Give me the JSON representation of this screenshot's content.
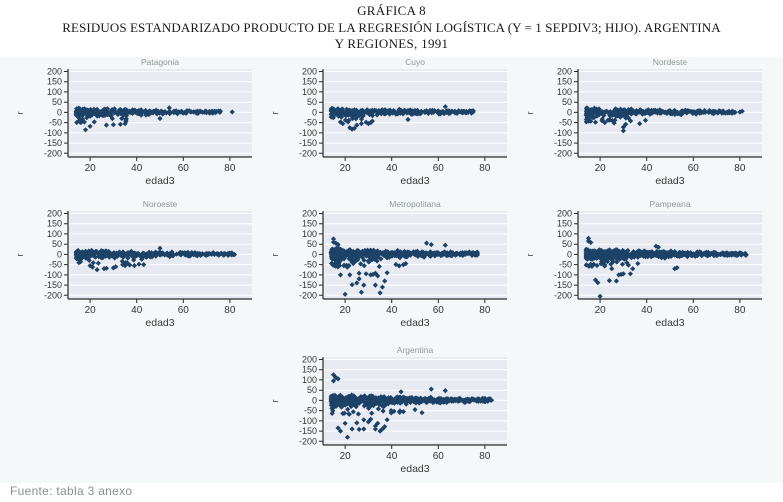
{
  "title": {
    "line1": "GRÁFICA 8",
    "line2": "RESIDUOS ESTANDARIZADO PRODUCTO DE LA REGRESIÓN LOGÍSTICA (Y = 1 SEPDIV3; HIJO). ARGENTINA",
    "line3": "Y REGIONES, 1991"
  },
  "footer": {
    "source": "Fuente: tabla 3 anexo"
  },
  "colors": {
    "marker": "#1c4268",
    "plot_bg": "#e8eaf2",
    "grid": "#ffffff",
    "axis": "#2a2a2a",
    "tick_label": "#333333",
    "subplot_title": "#8f9798",
    "figure_bg": "#f5f8f9"
  },
  "chart_data": {
    "type": "scatter",
    "title": "Residuos estandarizados vs edad, por región",
    "xlabel": "edad3",
    "ylabel": "r",
    "x_ticks": [
      20,
      40,
      60,
      80
    ],
    "y_ticks": [
      200,
      150,
      100,
      50,
      0,
      -50,
      -100,
      -150,
      -200
    ],
    "x_range": [
      10.5,
      89.5
    ],
    "y_range": [
      -218,
      212
    ],
    "grid": true,
    "legend": "none",
    "marker": "diamond",
    "subplots": [
      {
        "title": "Patagonia",
        "band": {
          "x_min": 14,
          "x_max": 76,
          "n": 320,
          "center": 2,
          "spread_young": 22,
          "spread_old": 6,
          "neg_prob": 0.1,
          "neg_x_max": 36,
          "neg_depth": 40,
          "seed": 11
        },
        "outliers": [
          [
            18,
            -85
          ],
          [
            20,
            -68
          ],
          [
            27,
            -62
          ],
          [
            30,
            -60
          ],
          [
            33,
            -58
          ],
          [
            35,
            -55
          ],
          [
            50,
            -30
          ],
          [
            54,
            22
          ],
          [
            81,
            2
          ]
        ]
      },
      {
        "title": "Cuyo",
        "band": {
          "x_min": 14,
          "x_max": 75,
          "n": 340,
          "center": 2,
          "spread_young": 22,
          "spread_old": 7,
          "neg_prob": 0.08,
          "neg_x_max": 32,
          "neg_depth": 35,
          "seed": 22
        },
        "outliers": [
          [
            19,
            -55
          ],
          [
            22,
            -75
          ],
          [
            23,
            -82
          ],
          [
            24,
            -78
          ],
          [
            25,
            -62
          ],
          [
            27,
            -55
          ],
          [
            29,
            -48
          ],
          [
            30,
            -55
          ],
          [
            31,
            -50
          ],
          [
            47,
            -35
          ],
          [
            63,
            28
          ]
        ]
      },
      {
        "title": "Nordeste",
        "band": {
          "x_min": 14,
          "x_max": 78,
          "n": 340,
          "center": 2,
          "spread_young": 24,
          "spread_old": 6,
          "neg_prob": 0.1,
          "neg_x_max": 40,
          "neg_depth": 30,
          "seed": 33
        },
        "outliers": [
          [
            15,
            -42
          ],
          [
            18,
            -48
          ],
          [
            22,
            -50
          ],
          [
            26,
            -52
          ],
          [
            30,
            -90
          ],
          [
            30,
            -72
          ],
          [
            31,
            -58
          ],
          [
            37,
            -55
          ],
          [
            80,
            2
          ],
          [
            81,
            6
          ]
        ]
      },
      {
        "title": "Noroeste",
        "band": {
          "x_min": 14,
          "x_max": 82,
          "n": 360,
          "center": 2,
          "spread_young": 22,
          "spread_old": 6,
          "neg_prob": 0.07,
          "neg_x_max": 44,
          "neg_depth": 30,
          "seed": 44
        },
        "outliers": [
          [
            20,
            -55
          ],
          [
            21,
            -62
          ],
          [
            23,
            -75
          ],
          [
            26,
            -70
          ],
          [
            27,
            -68
          ],
          [
            30,
            -66
          ],
          [
            31,
            -60
          ],
          [
            34,
            -50
          ],
          [
            35,
            -55
          ],
          [
            37,
            -52
          ],
          [
            39,
            -55
          ],
          [
            41,
            -48
          ],
          [
            43,
            -50
          ],
          [
            50,
            30
          ]
        ]
      },
      {
        "title": "Metropolitana",
        "band": {
          "x_min": 14,
          "x_max": 77,
          "n": 550,
          "center": 3,
          "spread_young": 28,
          "spread_old": 9,
          "neg_prob": 0.1,
          "neg_x_max": 45,
          "neg_depth": 45,
          "seed": 55
        },
        "outliers": [
          [
            15,
            75
          ],
          [
            15,
            60
          ],
          [
            16,
            55
          ],
          [
            17,
            48
          ],
          [
            18,
            -100
          ],
          [
            20,
            -195
          ],
          [
            22,
            -100
          ],
          [
            23,
            -148
          ],
          [
            25,
            -140
          ],
          [
            26,
            -92
          ],
          [
            26,
            -120
          ],
          [
            27,
            -185
          ],
          [
            28,
            -150
          ],
          [
            29,
            -95
          ],
          [
            31,
            -100
          ],
          [
            32,
            -98
          ],
          [
            33,
            -150
          ],
          [
            33,
            -92
          ],
          [
            34,
            -105
          ],
          [
            35,
            -188
          ],
          [
            36,
            -160
          ],
          [
            37,
            -130
          ],
          [
            38,
            -90
          ],
          [
            45,
            -50
          ],
          [
            46,
            -45
          ],
          [
            55,
            55
          ],
          [
            57,
            48
          ],
          [
            63,
            45
          ]
        ]
      },
      {
        "title": "Pampeana",
        "band": {
          "x_min": 14,
          "x_max": 83,
          "n": 560,
          "center": 2,
          "spread_young": 28,
          "spread_old": 7,
          "neg_prob": 0.1,
          "neg_x_max": 40,
          "neg_depth": 40,
          "seed": 66
        },
        "outliers": [
          [
            15,
            78
          ],
          [
            15,
            65
          ],
          [
            16,
            58
          ],
          [
            18,
            -125
          ],
          [
            19,
            -138
          ],
          [
            20,
            -205
          ],
          [
            24,
            -128
          ],
          [
            25,
            -70
          ],
          [
            27,
            -130
          ],
          [
            28,
            -100
          ],
          [
            29,
            -98
          ],
          [
            30,
            -95
          ],
          [
            33,
            -95
          ],
          [
            34,
            -70
          ],
          [
            44,
            40
          ],
          [
            45,
            35
          ],
          [
            52,
            -70
          ],
          [
            53,
            -65
          ]
        ]
      },
      {
        "title": "Argentina",
        "band": {
          "x_min": 14,
          "x_max": 83,
          "n": 650,
          "center": 2,
          "spread_young": 30,
          "spread_old": 8,
          "neg_prob": 0.12,
          "neg_x_max": 45,
          "neg_depth": 50,
          "seed": 77
        },
        "outliers": [
          [
            15,
            125
          ],
          [
            15,
            95
          ],
          [
            16,
            112
          ],
          [
            17,
            105
          ],
          [
            17,
            -135
          ],
          [
            18,
            -150
          ],
          [
            20,
            -112
          ],
          [
            21,
            -180
          ],
          [
            23,
            -140
          ],
          [
            25,
            -110
          ],
          [
            26,
            -142
          ],
          [
            28,
            -95
          ],
          [
            28,
            -140
          ],
          [
            30,
            -105
          ],
          [
            31,
            -92
          ],
          [
            33,
            -140
          ],
          [
            33,
            -125
          ],
          [
            34,
            -112
          ],
          [
            35,
            -150
          ],
          [
            36,
            -140
          ],
          [
            37,
            -128
          ],
          [
            38,
            -95
          ],
          [
            44,
            42
          ],
          [
            45,
            -55
          ],
          [
            50,
            -45
          ],
          [
            53,
            -60
          ],
          [
            57,
            55
          ],
          [
            63,
            48
          ]
        ]
      }
    ]
  }
}
